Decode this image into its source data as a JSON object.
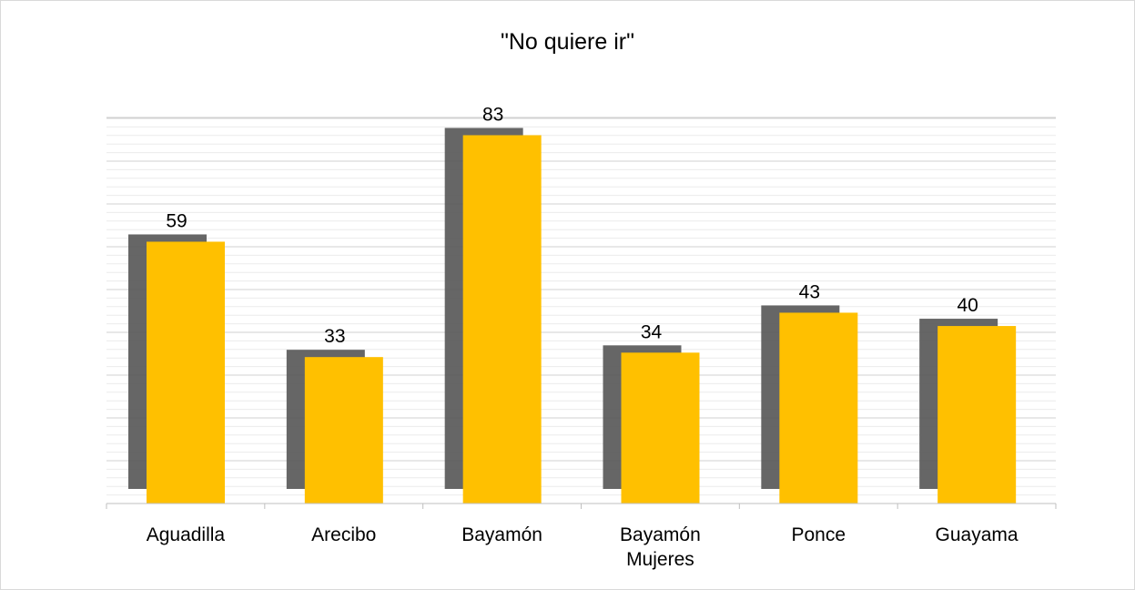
{
  "chart_data": {
    "type": "bar",
    "title": "\"No quiere ir\"",
    "categories": [
      [
        "Aguadilla"
      ],
      [
        "Arecibo"
      ],
      [
        "Bayamón"
      ],
      [
        "Bayamón",
        "Mujeres"
      ],
      [
        "Ponce"
      ],
      [
        "Guayama"
      ]
    ],
    "series": [
      {
        "values": [
          59,
          33,
          83,
          34,
          43,
          40
        ]
      }
    ],
    "data_labels": [
      "59",
      "33",
      "83",
      "34",
      "43",
      "40"
    ],
    "ylim": [
      0,
      87
    ],
    "grid": true,
    "legend": "none",
    "bar_color": "#ffc000",
    "shadow_color": "#595959",
    "gridline_color": "#d9d9d9",
    "axis_color": "#bfbfbf"
  }
}
